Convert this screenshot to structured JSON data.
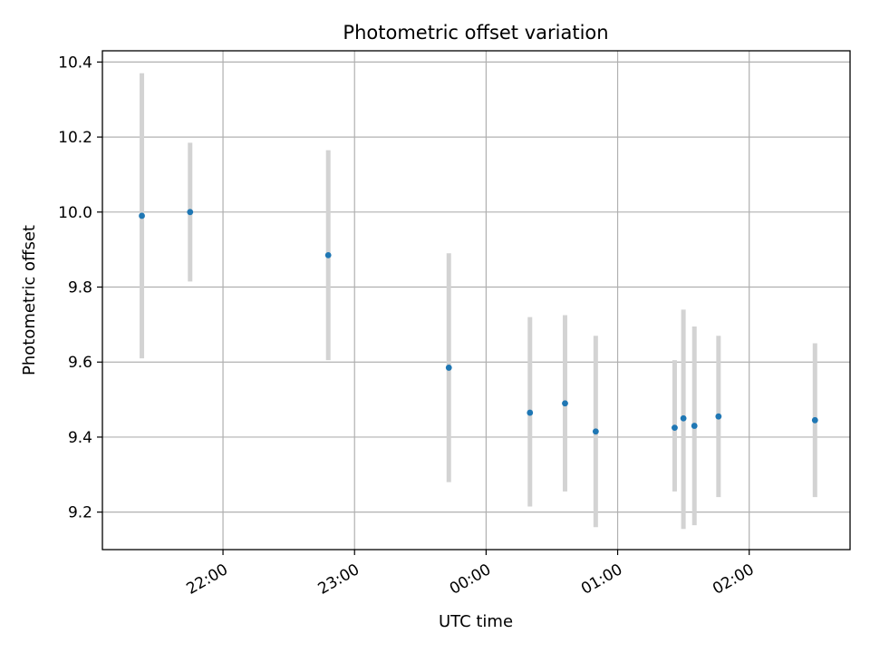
{
  "chart_data": {
    "type": "scatter",
    "title": "Photometric offset variation",
    "xlabel": "UTC time",
    "ylabel": "Photometric offset",
    "x_ticks": [
      "22:00",
      "23:00",
      "00:00",
      "01:00",
      "02:00"
    ],
    "y_ticks": [
      "9.2",
      "9.4",
      "9.6",
      "9.8",
      "10.0",
      "10.2",
      "10.4"
    ],
    "xlim": [
      "21:05",
      "02:46"
    ],
    "ylim": [
      9.1,
      10.43
    ],
    "grid": true,
    "series": [
      {
        "points": [
          {
            "x": "21:23",
            "y": 9.99,
            "err_low": 9.61,
            "err_high": 10.37
          },
          {
            "x": "21:45",
            "y": 10.0,
            "err_low": 9.815,
            "err_high": 10.185
          },
          {
            "x": "22:48",
            "y": 9.885,
            "err_low": 9.605,
            "err_high": 10.165
          },
          {
            "x": "23:43",
            "y": 9.585,
            "err_low": 9.28,
            "err_high": 9.89
          },
          {
            "x": "00:20",
            "y": 9.465,
            "err_low": 9.215,
            "err_high": 9.72
          },
          {
            "x": "00:36",
            "y": 9.49,
            "err_low": 9.255,
            "err_high": 9.725
          },
          {
            "x": "00:50",
            "y": 9.415,
            "err_low": 9.16,
            "err_high": 9.67
          },
          {
            "x": "01:26",
            "y": 9.425,
            "err_low": 9.255,
            "err_high": 9.605
          },
          {
            "x": "01:30",
            "y": 9.45,
            "err_low": 9.155,
            "err_high": 9.74
          },
          {
            "x": "01:35",
            "y": 9.43,
            "err_low": 9.165,
            "err_high": 9.695
          },
          {
            "x": "01:46",
            "y": 9.455,
            "err_low": 9.24,
            "err_high": 9.67
          },
          {
            "x": "02:30",
            "y": 9.445,
            "err_low": 9.24,
            "err_high": 9.65
          }
        ]
      }
    ],
    "colors": {
      "point": "#1f77b4",
      "errorbar": "#d3d3d3",
      "grid": "#b0b0b0",
      "axes": "#000000"
    }
  }
}
